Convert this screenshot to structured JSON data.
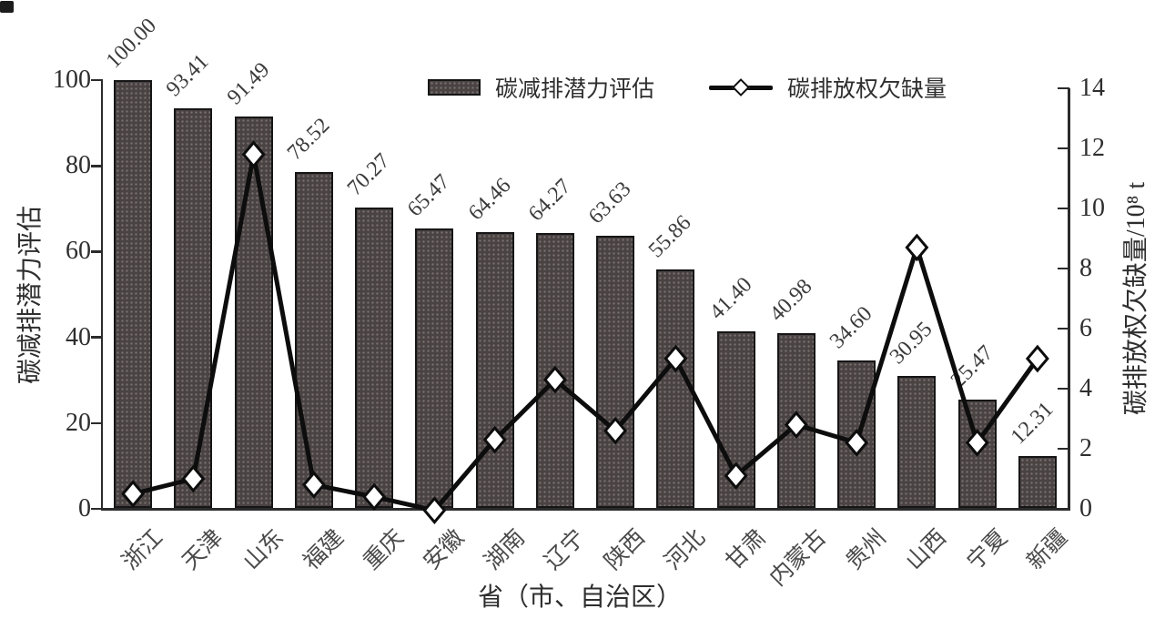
{
  "chart_data": {
    "type": "bar",
    "subtype": "bar-line-combo-dual-axis",
    "title": "",
    "categories": [
      "浙江",
      "天津",
      "山东",
      "福建",
      "重庆",
      "安徽",
      "湖南",
      "辽宁",
      "陕西",
      "河北",
      "甘肃",
      "内蒙古",
      "贵州",
      "山西",
      "宁夏",
      "新疆"
    ],
    "series": [
      {
        "name": "碳减排潜力评估",
        "type": "bar",
        "yaxis": "left",
        "values": [
          100.0,
          93.41,
          91.49,
          78.52,
          70.27,
          65.47,
          64.46,
          64.27,
          63.63,
          55.86,
          41.4,
          40.98,
          34.6,
          30.95,
          25.47,
          12.31
        ],
        "labels": [
          "100.00",
          "93.41",
          "91.49",
          "78.52",
          "70.27",
          "65.47",
          "64.46",
          "64.27",
          "63.63",
          "55.86",
          "41.40",
          "40.98",
          "34.60",
          "30.95",
          "25.47",
          "12.31"
        ]
      },
      {
        "name": "碳排放权欠缺量",
        "type": "line",
        "yaxis": "right",
        "marker": "diamond",
        "values": [
          0.5,
          1.0,
          11.8,
          0.8,
          0.4,
          -0.05,
          2.3,
          4.3,
          2.6,
          5.0,
          1.1,
          2.8,
          2.2,
          8.7,
          2.2,
          5.0
        ]
      }
    ],
    "xlabel": "省（市、自治区）",
    "ylabel_left": "碳减排潜力评估",
    "ylabel_right": "碳排放权欠缺量/10⁸ t",
    "ylim_left": [
      0,
      100
    ],
    "ylim_right": [
      0,
      14
    ],
    "yticks_left": [
      "0",
      "20",
      "40",
      "60",
      "80",
      "100"
    ],
    "yticks_right": [
      "0",
      "2",
      "4",
      "6",
      "8",
      "10",
      "12",
      "14"
    ],
    "legend": {
      "position": "top-center",
      "items": [
        "碳减排潜力评估",
        "碳排放权欠缺量"
      ]
    },
    "grid": false,
    "colors": {
      "bar_fill": "#4a4343",
      "bar_border": "#161616",
      "line": "#0d0d0d",
      "marker_fill": "#ffffff",
      "text": "#2e2e2e"
    }
  }
}
